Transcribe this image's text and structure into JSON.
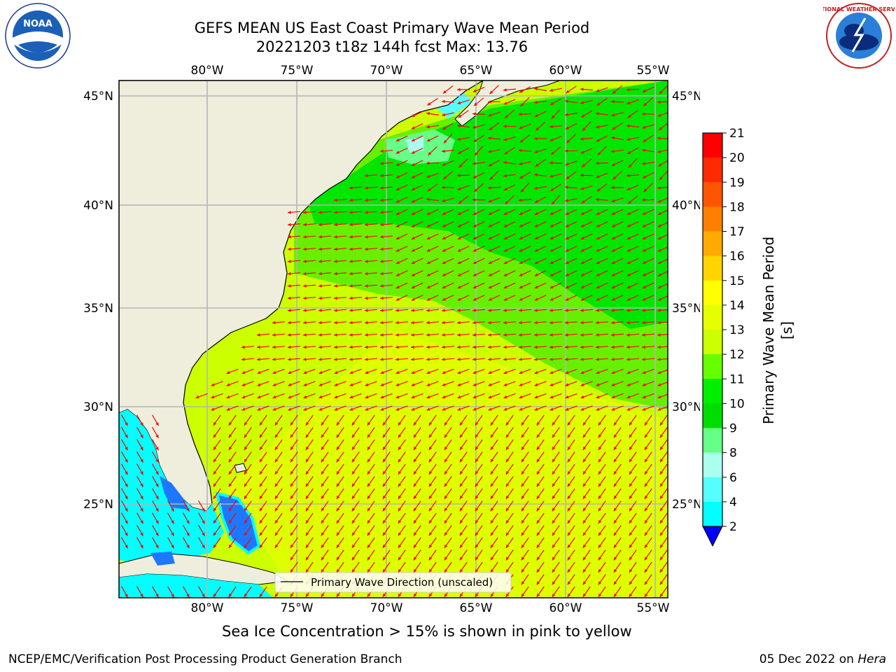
{
  "title": {
    "line1": "GEFS MEAN US East Coast Primary Wave Mean Period",
    "line2": "20221203 t18z 144h fcst   Max: 13.76"
  },
  "logos": {
    "left_text": "NOAA",
    "right_text": "NATIONAL WEATHER SERVICE"
  },
  "map": {
    "lon_labels": [
      "80°W",
      "75°W",
      "70°W",
      "65°W",
      "60°W",
      "55°W"
    ],
    "lat_labels": [
      "45°N",
      "40°N",
      "35°N",
      "30°N",
      "25°N"
    ],
    "legend_label": "Primary Wave Direction (unscaled)"
  },
  "colorbar": {
    "label": "Primary Wave Mean Period [s]",
    "ticks": [
      "21",
      "20",
      "19",
      "18",
      "17",
      "16",
      "15",
      "14",
      "13",
      "12",
      "11",
      "10",
      "9",
      "8",
      "6",
      "4",
      "2"
    ],
    "colors": [
      "#ff0000",
      "#ff2a00",
      "#ff5500",
      "#ff8000",
      "#ffaa00",
      "#ffd400",
      "#ffff00",
      "#e6ff00",
      "#ccff00",
      "#66ff00",
      "#00ee00",
      "#00dd00",
      "#66ff88",
      "#aaffee",
      "#55ffff",
      "#00ffff",
      "#0080ff"
    ],
    "extend_color": "#0000ff"
  },
  "colors": {
    "land": "#efeedd",
    "period_11_12": "#00e600",
    "period_12_13": "#66f000",
    "period_13_14": "#ccff00",
    "period_14_15": "#e6ff00",
    "shallow_cyan": "#00ffff",
    "deep_blue": "#1e78ff",
    "arrow": "#ff0000"
  },
  "subtitle": "Sea Ice Concentration > 15% is shown in pink to yellow",
  "footer": {
    "left": "NCEP/EMC/Verification Post Processing Product Generation Branch",
    "right_date": "05 Dec 2022 on ",
    "right_host": "Hera"
  }
}
